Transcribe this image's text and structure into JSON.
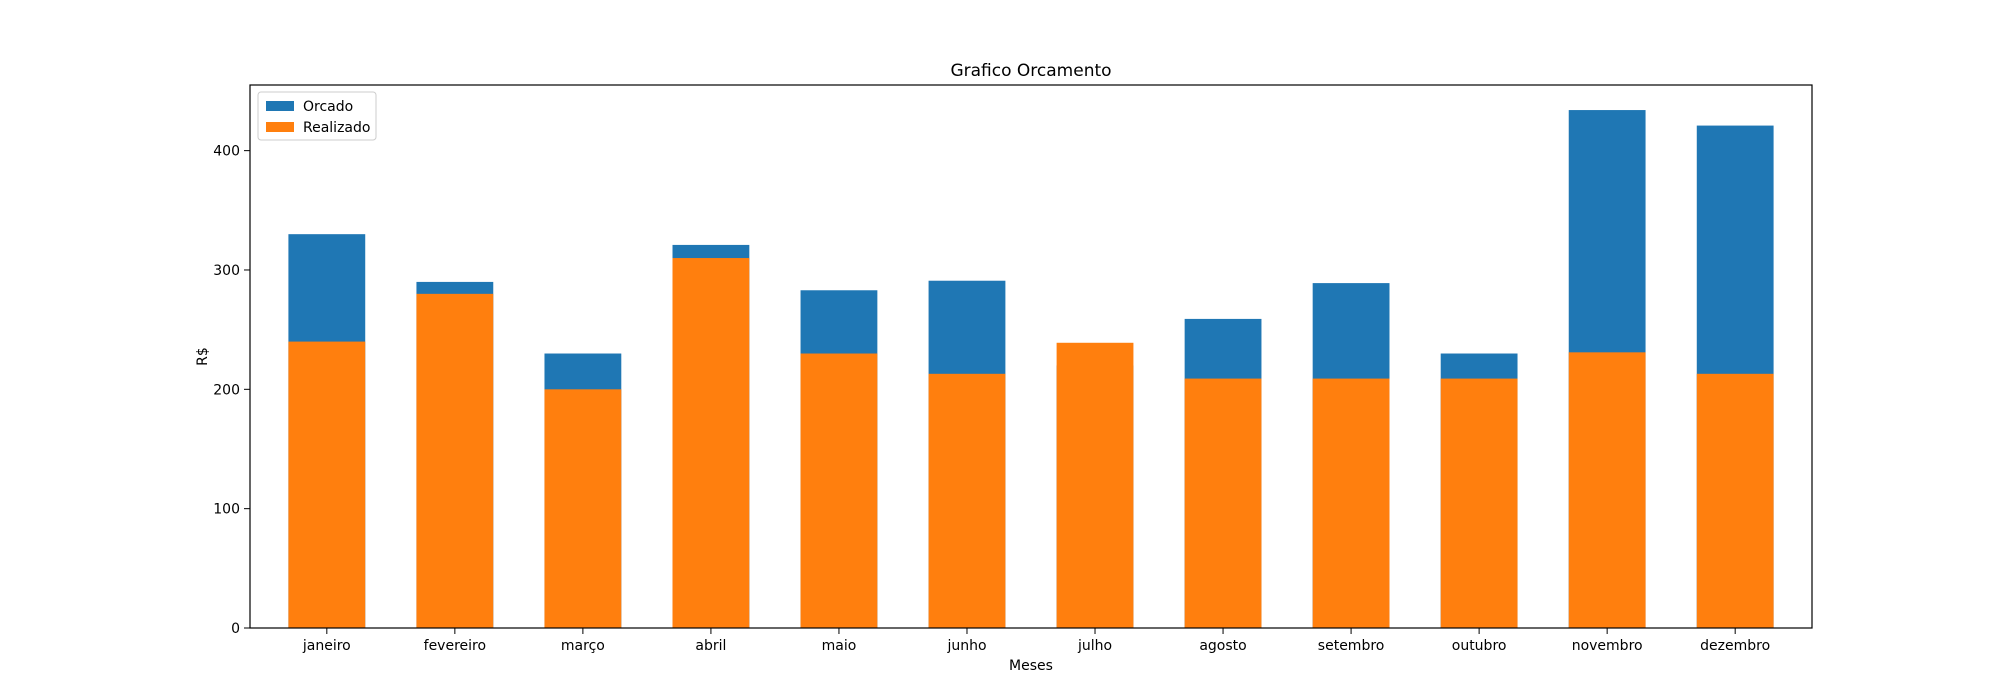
{
  "chart_data": {
    "type": "bar",
    "stacked": "overlay",
    "title": "Grafico Orcamento",
    "xlabel": "Meses",
    "ylabel": "R$",
    "ylim": [
      0,
      455
    ],
    "yticks": [
      0,
      100,
      200,
      300,
      400
    ],
    "grid": false,
    "legend_position": "top-left",
    "categories": [
      "janeiro",
      "fevereiro",
      "março",
      "abril",
      "maio",
      "junho",
      "julho",
      "agosto",
      "setembro",
      "outubro",
      "novembro",
      "dezembro"
    ],
    "series": [
      {
        "name": "Orcado",
        "color": "#1f77b4",
        "values": [
          330,
          290,
          230,
          321,
          283,
          291,
          220,
          259,
          289,
          230,
          434,
          421
        ]
      },
      {
        "name": "Realizado",
        "color": "#ff7f0e",
        "values": [
          240,
          280,
          200,
          310,
          230,
          213,
          239,
          209,
          209,
          209,
          231,
          213
        ]
      }
    ]
  }
}
